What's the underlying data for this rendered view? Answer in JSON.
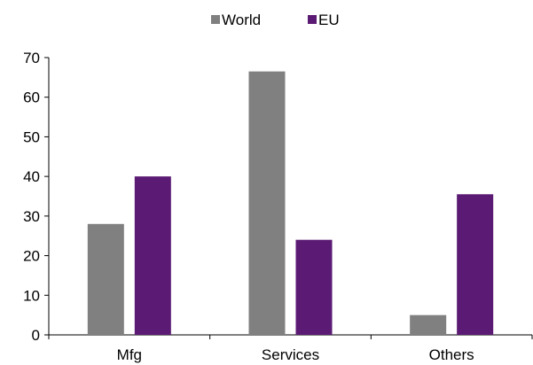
{
  "chart_data": {
    "type": "bar",
    "categories": [
      "Mfg",
      "Services",
      "Others"
    ],
    "series": [
      {
        "name": "World",
        "values": [
          28,
          66.5,
          5
        ],
        "color": "#808080"
      },
      {
        "name": "EU",
        "values": [
          40,
          24,
          35.5
        ],
        "color": "#5b1a73"
      }
    ],
    "ylim": [
      0,
      70
    ],
    "yticks": [
      "0",
      "10",
      "20",
      "30",
      "40",
      "50",
      "60",
      "70"
    ],
    "grid": false,
    "legend_position": "top-center"
  }
}
